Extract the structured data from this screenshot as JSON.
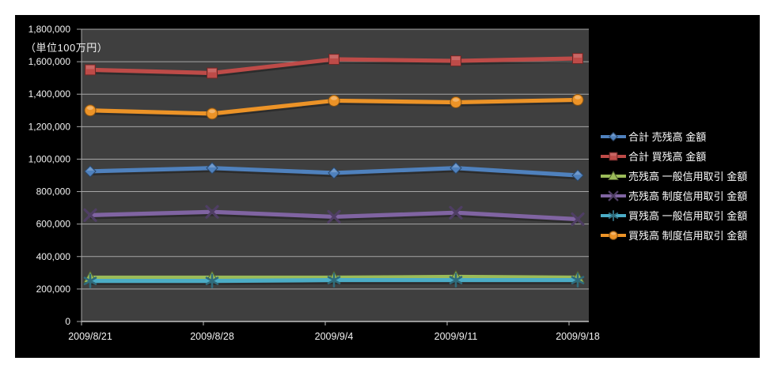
{
  "chart": {
    "page_background": "#FFFFFF",
    "background": "#000000",
    "plot_background": "#3F3F3F",
    "gridline_color": "#A6A6A6",
    "axis_color": "#BFBFBF",
    "text_color": "#F2F2F2"
  },
  "chart_data": {
    "type": "line",
    "title": "",
    "ylabel": "（単位100万円）",
    "categories": [
      "2009/8/21",
      "2009/8/28",
      "2009/9/4",
      "2009/9/11",
      "2009/9/18"
    ],
    "series": [
      {
        "name": "合計 売残高 金額",
        "color": "#4F81BD",
        "marker": "diamond",
        "values": [
          925000,
          945000,
          915000,
          945000,
          900000
        ]
      },
      {
        "name": "合計 買残高 金額",
        "color": "#BE4B48",
        "marker": "square",
        "values": [
          1550000,
          1530000,
          1615000,
          1605000,
          1620000
        ]
      },
      {
        "name": "売残高 一般信用取引 金額",
        "color": "#9BBB59",
        "marker": "triangle",
        "values": [
          270000,
          270000,
          270000,
          275000,
          270000
        ]
      },
      {
        "name": "売残高 制度信用取引 金額",
        "color": "#8064A2",
        "marker": "x",
        "values": [
          655000,
          675000,
          645000,
          670000,
          630000
        ]
      },
      {
        "name": "買残高 一般信用取引 金額",
        "color": "#4BACC6",
        "marker": "asterisk",
        "values": [
          250000,
          250000,
          255000,
          255000,
          255000
        ]
      },
      {
        "name": "買残高 制度信用取引 金額",
        "color": "#EC9327",
        "marker": "circle",
        "values": [
          1300000,
          1280000,
          1360000,
          1350000,
          1365000
        ]
      }
    ],
    "ylim": [
      0,
      1800000
    ],
    "ytick_interval": 200000,
    "y_tick_labels": [
      "0",
      "200,000",
      "400,000",
      "600,000",
      "800,000",
      "1,000,000",
      "1,200,000",
      "1,400,000",
      "1,600,000",
      "1,800,000"
    ],
    "grid": true,
    "legend_position": "right"
  }
}
